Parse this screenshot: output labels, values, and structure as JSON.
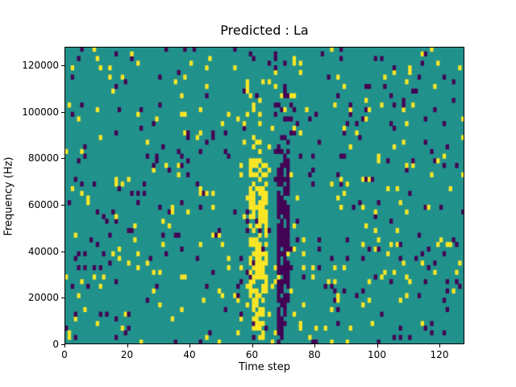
{
  "chart_data": {
    "type": "heatmap",
    "title": "Predicted : La",
    "xlabel": "Time step",
    "ylabel": "Frequency (Hz)",
    "xlim": [
      0,
      128
    ],
    "ylim": [
      0,
      128000
    ],
    "x_ticks": [
      0,
      20,
      40,
      60,
      80,
      100,
      120
    ],
    "y_ticks": [
      0,
      20000,
      40000,
      60000,
      80000,
      100000,
      120000
    ],
    "grid": {
      "nx": 128,
      "ny": 64
    },
    "colors": {
      "background": "#21918c",
      "high": "#fde725",
      "low": "#440154"
    },
    "noise": {
      "seed": 1337,
      "p_high": 0.032,
      "p_low": 0.032
    },
    "features": [
      {
        "x0": 59,
        "x1": 65,
        "y0": 10,
        "y1": 40,
        "value": "high",
        "density": 0.6
      },
      {
        "x0": 60,
        "x1": 64,
        "y0": 1,
        "y1": 10,
        "value": "high",
        "density": 0.45
      },
      {
        "x0": 60,
        "x1": 63,
        "y0": 40,
        "y1": 52,
        "value": "high",
        "density": 0.2
      },
      {
        "x0": 68,
        "x1": 72,
        "y0": 8,
        "y1": 40,
        "value": "low",
        "density": 0.7
      },
      {
        "x0": 68,
        "x1": 71,
        "y0": 0,
        "y1": 8,
        "value": "low",
        "density": 0.45
      },
      {
        "x0": 67,
        "x1": 73,
        "y0": 40,
        "y1": 64,
        "value": "low",
        "density": 0.12
      }
    ],
    "legend": false,
    "grid_lines": false
  }
}
